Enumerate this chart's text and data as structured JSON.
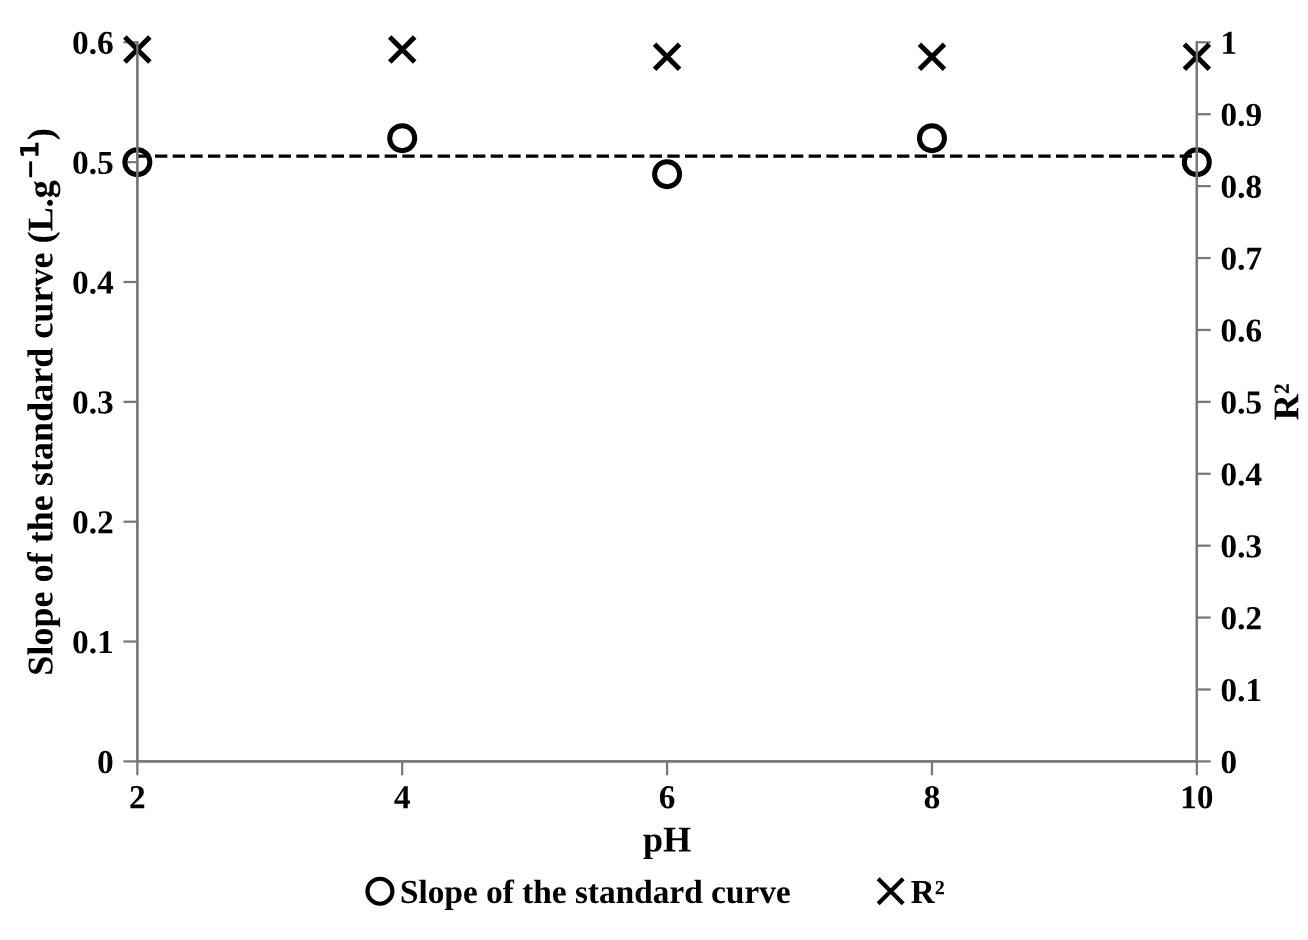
{
  "chart_data": {
    "type": "scatter",
    "xlabel": "pH",
    "ylabel": "Slope of the standard curve (L.g$^{−1}$)",
    "y2label": "R²",
    "x": [
      2,
      4,
      6,
      8,
      10
    ],
    "series": [
      {
        "name": "Slope of the standard curve",
        "color": "#000000",
        "marker": "circle",
        "values": [
          0.5,
          0.52,
          0.49,
          0.52,
          0.5
        ]
      },
      {
        "name": "R²",
        "color": "#000000",
        "marker": "cross",
        "axis": "y2",
        "values": [
          0.99,
          0.99,
          0.98,
          0.98,
          0.98
        ]
      }
    ],
    "xlim": [
      2,
      10
    ],
    "xticks": [
      2,
      4,
      6,
      8,
      10
    ],
    "ylim": [
      0,
      0.6
    ],
    "yticks": [
      0,
      0.1,
      0.2,
      0.3,
      0.4,
      0.5,
      0.6
    ],
    "y2lim": [
      0,
      1
    ],
    "y2ticks": [
      0,
      0.1,
      0.2,
      0.3,
      0.4,
      0.5,
      0.6,
      0.7,
      0.8,
      0.9,
      1
    ],
    "ref_lines": [
      {
        "axis": "y",
        "value": 0.505,
        "color": "#000000",
        "line_style": "dashed"
      }
    ],
    "grid": false,
    "legend": "bottom"
  }
}
